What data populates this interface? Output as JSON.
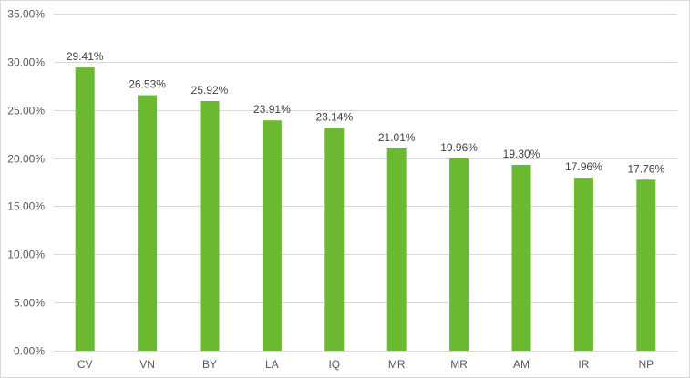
{
  "chart_data": {
    "type": "bar",
    "categories": [
      "CV",
      "VN",
      "BY",
      "LA",
      "IQ",
      "MR",
      "MR",
      "AM",
      "IR",
      "NP"
    ],
    "values": [
      29.41,
      26.53,
      25.92,
      23.91,
      23.14,
      21.01,
      19.96,
      19.3,
      17.96,
      17.76
    ],
    "data_labels": [
      "29.41%",
      "26.53%",
      "25.92%",
      "23.91%",
      "23.14%",
      "21.01%",
      "19.96%",
      "19.30%",
      "17.96%",
      "17.76%"
    ],
    "title": "",
    "xlabel": "",
    "ylabel": "",
    "ylim": [
      0,
      35
    ],
    "y_ticks": [
      "0.00%",
      "5.00%",
      "10.00%",
      "15.00%",
      "20.00%",
      "25.00%",
      "30.00%",
      "35.00%"
    ],
    "grid": true,
    "legend": "none",
    "colors": {
      "bar": "#6ab930",
      "grid": "#d9d9d9"
    }
  }
}
